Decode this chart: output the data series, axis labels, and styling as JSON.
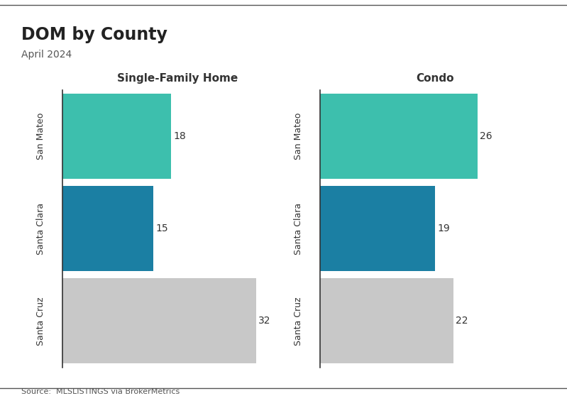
{
  "title": "DOM by County",
  "subtitle": "April 2024",
  "source": "Source:  MLSLISTINGS via BrokerMetrics",
  "counties": [
    "San Mateo",
    "Santa Clara",
    "Santa Cruz"
  ],
  "sfh_values": [
    18,
    15,
    32
  ],
  "condo_values": [
    26,
    19,
    22
  ],
  "sfh_colors": [
    "#3dbfad",
    "#1b7fa3",
    "#c8c8c8"
  ],
  "condo_colors": [
    "#3dbfad",
    "#1b7fa3",
    "#c8c8c8"
  ],
  "sfh_title": "Single-Family Home",
  "condo_title": "Condo",
  "xlim_sfh": [
    0,
    38
  ],
  "xlim_condo": [
    0,
    38
  ],
  "background_color": "#ffffff",
  "title_fontsize": 17,
  "subtitle_fontsize": 10,
  "axis_title_fontsize": 11,
  "bar_label_fontsize": 10,
  "ylabel_fontsize": 9,
  "source_fontsize": 8
}
